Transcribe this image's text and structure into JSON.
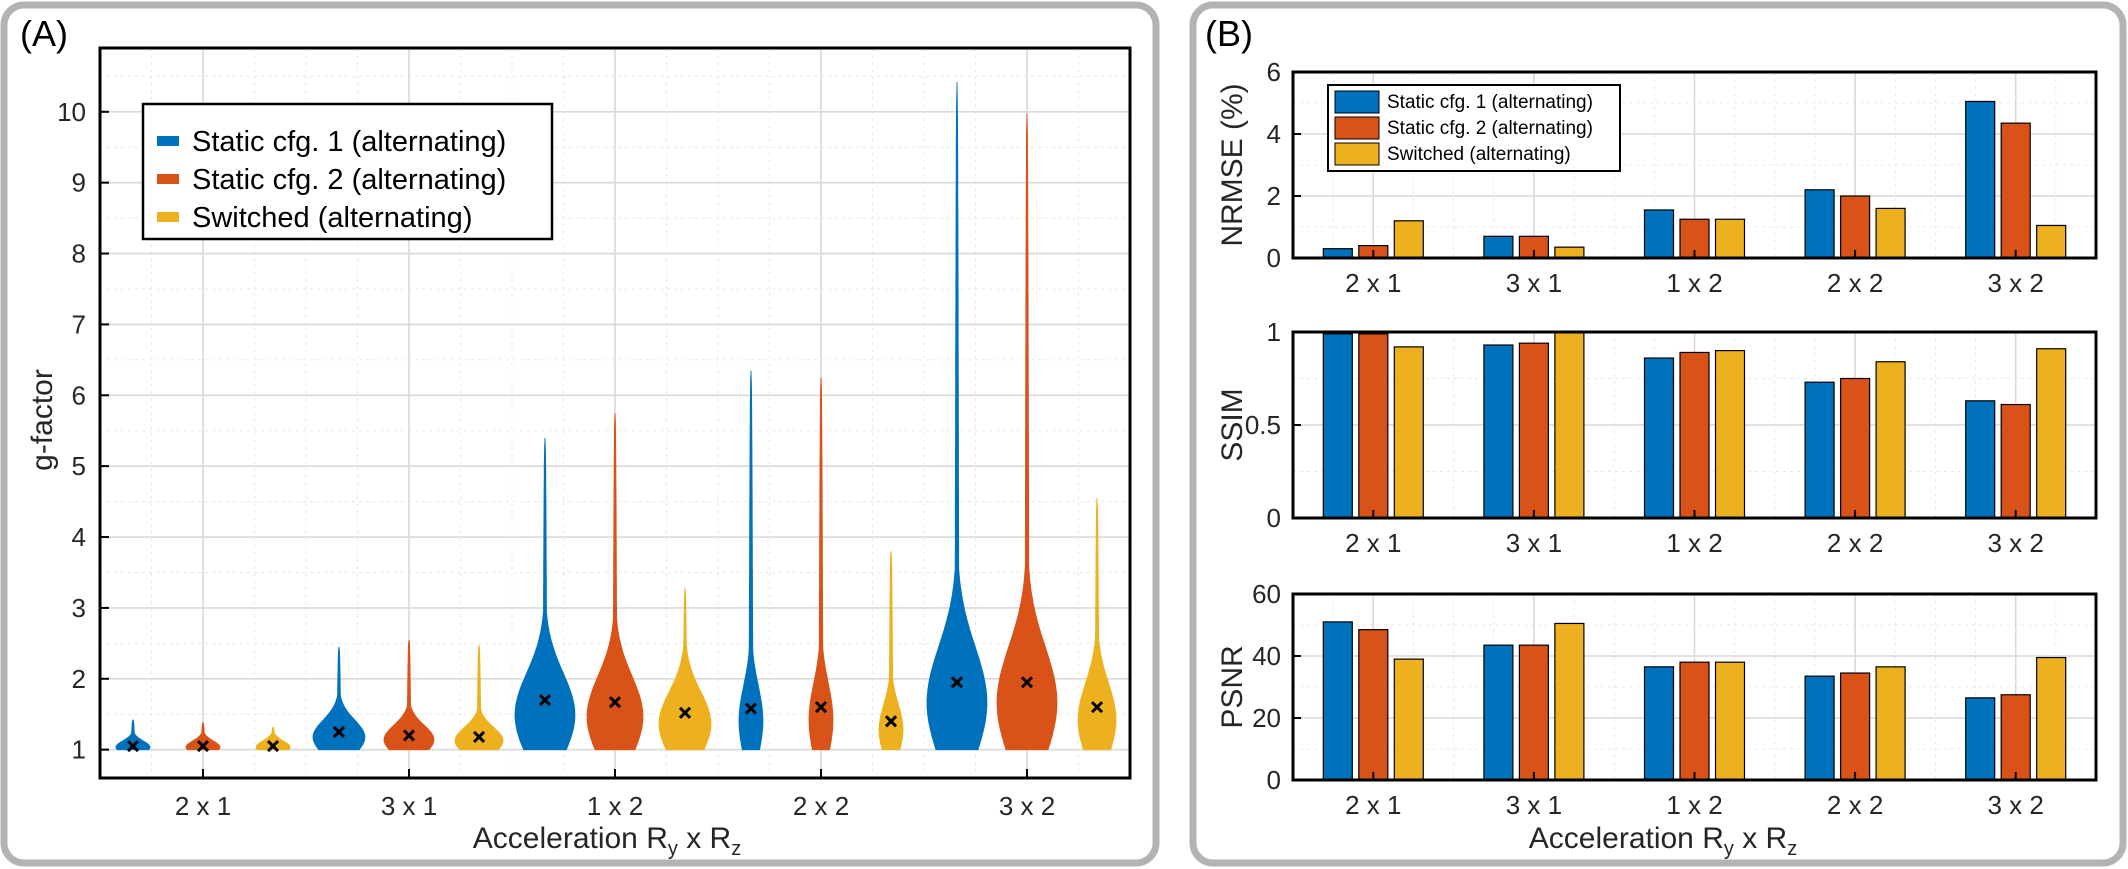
{
  "panels": {
    "a": {
      "label": "(A)",
      "ylabel": "g-factor",
      "xlabel": "Acceleration R",
      "xlabel_sub1": "y",
      "xlabel_mid": " x R",
      "xlabel_sub2": "z"
    },
    "b": {
      "label": "(B)",
      "xlabel": "Acceleration R",
      "xlabel_sub1": "y",
      "xlabel_mid": " x R",
      "xlabel_sub2": "z"
    }
  },
  "series_colors": [
    "#0072BD",
    "#D95319",
    "#EDB120"
  ],
  "chart_data": [
    {
      "type": "violin",
      "categories": [
        "2 x 1",
        "3 x 1",
        "1 x 2",
        "2 x 2",
        "3 x 2"
      ],
      "ylabel": "g-factor",
      "xlabel": "Acceleration Ry x Rz",
      "ylim": [
        0.6,
        10.9
      ],
      "yticks": [
        1,
        2,
        3,
        4,
        5,
        6,
        7,
        8,
        9,
        10
      ],
      "grid": true,
      "legend_position": "top-left",
      "series": [
        {
          "name": "Static cfg. 1 (alternating)",
          "color": "#0072BD",
          "mean": [
            1.05,
            1.25,
            1.7,
            1.58,
            1.95
          ],
          "max": [
            1.42,
            2.45,
            5.4,
            6.35,
            10.42
          ]
        },
        {
          "name": "Static cfg. 2 (alternating)",
          "color": "#D95319",
          "mean": [
            1.05,
            1.2,
            1.67,
            1.6,
            1.95
          ],
          "max": [
            1.38,
            2.55,
            5.75,
            6.25,
            9.98
          ]
        },
        {
          "name": "Switched (alternating)",
          "color": "#EDB120",
          "mean": [
            1.05,
            1.18,
            1.52,
            1.4,
            1.6
          ],
          "max": [
            1.32,
            2.48,
            3.28,
            3.8,
            4.55
          ]
        }
      ]
    },
    {
      "type": "bar",
      "ylabel": "NRMSE (%)",
      "categories": [
        "2 x 1",
        "3 x 1",
        "1 x 2",
        "2 x 2",
        "3 x 2"
      ],
      "ylim": [
        0,
        6
      ],
      "yticks": [
        0,
        2,
        4,
        6
      ],
      "grid": true,
      "legend_position": "top-left",
      "series": [
        {
          "name": "Static cfg. 1 (alternating)",
          "values": [
            0.3,
            0.7,
            1.55,
            2.2,
            5.05
          ]
        },
        {
          "name": "Static cfg. 2 (alternating)",
          "values": [
            0.4,
            0.7,
            1.25,
            2.0,
            4.35
          ]
        },
        {
          "name": "Switched (alternating)",
          "values": [
            1.2,
            0.35,
            1.25,
            1.6,
            1.05
          ]
        }
      ]
    },
    {
      "type": "bar",
      "ylabel": "SSIM",
      "categories": [
        "2 x 1",
        "3 x 1",
        "1 x 2",
        "2 x 2",
        "3 x 2"
      ],
      "ylim": [
        0,
        1
      ],
      "yticks": [
        0,
        0.5,
        1
      ],
      "grid": true,
      "series": [
        {
          "values": [
            0.99,
            0.93,
            0.86,
            0.73,
            0.63
          ]
        },
        {
          "values": [
            0.99,
            0.94,
            0.89,
            0.75,
            0.61
          ]
        },
        {
          "values": [
            0.92,
            1.0,
            0.9,
            0.84,
            0.91
          ]
        }
      ]
    },
    {
      "type": "bar",
      "ylabel": "PSNR",
      "xlabel": "Acceleration Ry x Rz",
      "categories": [
        "2 x 1",
        "3 x 1",
        "1 x 2",
        "2 x 2",
        "3 x 2"
      ],
      "ylim": [
        0,
        60
      ],
      "yticks": [
        0,
        20,
        40,
        60
      ],
      "grid": true,
      "series": [
        {
          "values": [
            51,
            43.5,
            36.5,
            33.5,
            26.5
          ]
        },
        {
          "values": [
            48.5,
            43.5,
            38,
            34.5,
            27.5
          ]
        },
        {
          "values": [
            39,
            50.5,
            38,
            36.5,
            39.5
          ]
        }
      ]
    }
  ]
}
